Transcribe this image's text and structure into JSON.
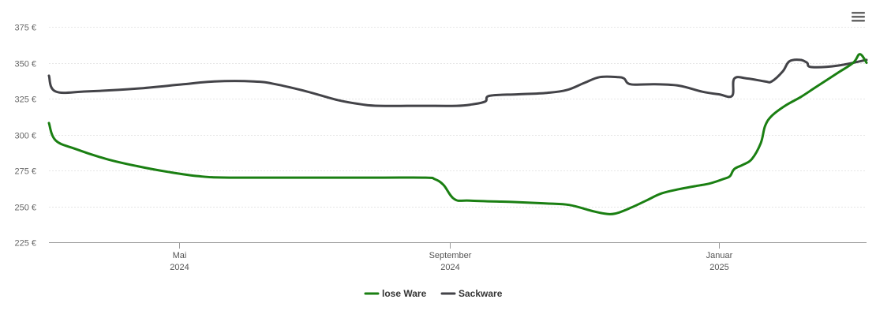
{
  "chart_data": {
    "type": "line",
    "y_ticks": [
      "375 €",
      "350 €",
      "325 €",
      "300 €",
      "275 €",
      "250 €",
      "225 €"
    ],
    "y_tick_values": [
      375,
      350,
      325,
      300,
      275,
      250,
      225
    ],
    "ylim": [
      225,
      375
    ],
    "xlim": [
      "2024-03-03",
      "2025-03-09"
    ],
    "x_ticks": [
      {
        "date": "2024-05-01",
        "label": "Mai",
        "year": "2024"
      },
      {
        "date": "2024-09-01",
        "label": "September",
        "year": "2024"
      },
      {
        "date": "2025-01-01",
        "label": "Januar",
        "year": "2025"
      }
    ],
    "grid": true,
    "legend_position": "bottom-center",
    "series": [
      {
        "name": "lose Ware",
        "color": "#1a7f12",
        "points": [
          [
            "2024-03-03",
            308
          ],
          [
            "2024-03-06",
            296
          ],
          [
            "2024-03-15",
            290
          ],
          [
            "2024-03-29",
            283
          ],
          [
            "2024-04-12",
            278
          ],
          [
            "2024-04-26",
            274
          ],
          [
            "2024-05-10",
            271
          ],
          [
            "2024-05-24",
            270
          ],
          [
            "2024-06-30",
            270
          ],
          [
            "2024-07-31",
            270
          ],
          [
            "2024-08-21",
            270
          ],
          [
            "2024-08-25",
            269
          ],
          [
            "2024-08-29",
            265
          ],
          [
            "2024-09-03",
            255
          ],
          [
            "2024-09-10",
            254
          ],
          [
            "2024-09-30",
            253
          ],
          [
            "2024-10-15",
            252
          ],
          [
            "2024-10-25",
            251
          ],
          [
            "2024-11-04",
            247
          ],
          [
            "2024-11-10",
            245
          ],
          [
            "2024-11-15",
            245
          ],
          [
            "2024-11-22",
            249
          ],
          [
            "2024-11-29",
            254
          ],
          [
            "2024-12-06",
            259
          ],
          [
            "2024-12-14",
            262
          ],
          [
            "2024-12-21",
            264
          ],
          [
            "2024-12-28",
            266
          ],
          [
            "2025-01-03",
            269
          ],
          [
            "2025-01-06",
            271
          ],
          [
            "2025-01-08",
            276
          ],
          [
            "2025-01-12",
            279
          ],
          [
            "2025-01-16",
            283
          ],
          [
            "2025-01-20",
            294
          ],
          [
            "2025-01-22",
            306
          ],
          [
            "2025-01-25",
            313
          ],
          [
            "2025-01-31",
            320
          ],
          [
            "2025-02-07",
            326
          ],
          [
            "2025-02-14",
            333
          ],
          [
            "2025-02-24",
            343
          ],
          [
            "2025-03-03",
            350
          ],
          [
            "2025-03-06",
            356
          ],
          [
            "2025-03-09",
            350
          ]
        ]
      },
      {
        "name": "Sackware",
        "color": "#434348",
        "points": [
          [
            "2024-03-03",
            341
          ],
          [
            "2024-03-06",
            330
          ],
          [
            "2024-03-20",
            330
          ],
          [
            "2024-04-12",
            332
          ],
          [
            "2024-05-03",
            335
          ],
          [
            "2024-05-17",
            337
          ],
          [
            "2024-06-04",
            337
          ],
          [
            "2024-06-14",
            335
          ],
          [
            "2024-06-28",
            330
          ],
          [
            "2024-07-12",
            324
          ],
          [
            "2024-07-23",
            321
          ],
          [
            "2024-07-31",
            320
          ],
          [
            "2024-08-19",
            320
          ],
          [
            "2024-09-04",
            320
          ],
          [
            "2024-09-11",
            321
          ],
          [
            "2024-09-17",
            323
          ],
          [
            "2024-09-19",
            327
          ],
          [
            "2024-10-02",
            328
          ],
          [
            "2024-10-15",
            329
          ],
          [
            "2024-10-24",
            331
          ],
          [
            "2024-11-01",
            336
          ],
          [
            "2024-11-08",
            340
          ],
          [
            "2024-11-16",
            340
          ],
          [
            "2024-11-19",
            339
          ],
          [
            "2024-11-22",
            335
          ],
          [
            "2024-12-03",
            335
          ],
          [
            "2024-12-14",
            334
          ],
          [
            "2024-12-24",
            330
          ],
          [
            "2025-01-01",
            328
          ],
          [
            "2025-01-07",
            327
          ],
          [
            "2025-01-08",
            339
          ],
          [
            "2025-01-14",
            339
          ],
          [
            "2025-01-22",
            337
          ],
          [
            "2025-01-25",
            337
          ],
          [
            "2025-01-30",
            344
          ],
          [
            "2025-02-02",
            351
          ],
          [
            "2025-02-07",
            352
          ],
          [
            "2025-02-10",
            350
          ],
          [
            "2025-02-12",
            347
          ],
          [
            "2025-02-24",
            348
          ],
          [
            "2025-03-09",
            352
          ]
        ]
      }
    ]
  }
}
